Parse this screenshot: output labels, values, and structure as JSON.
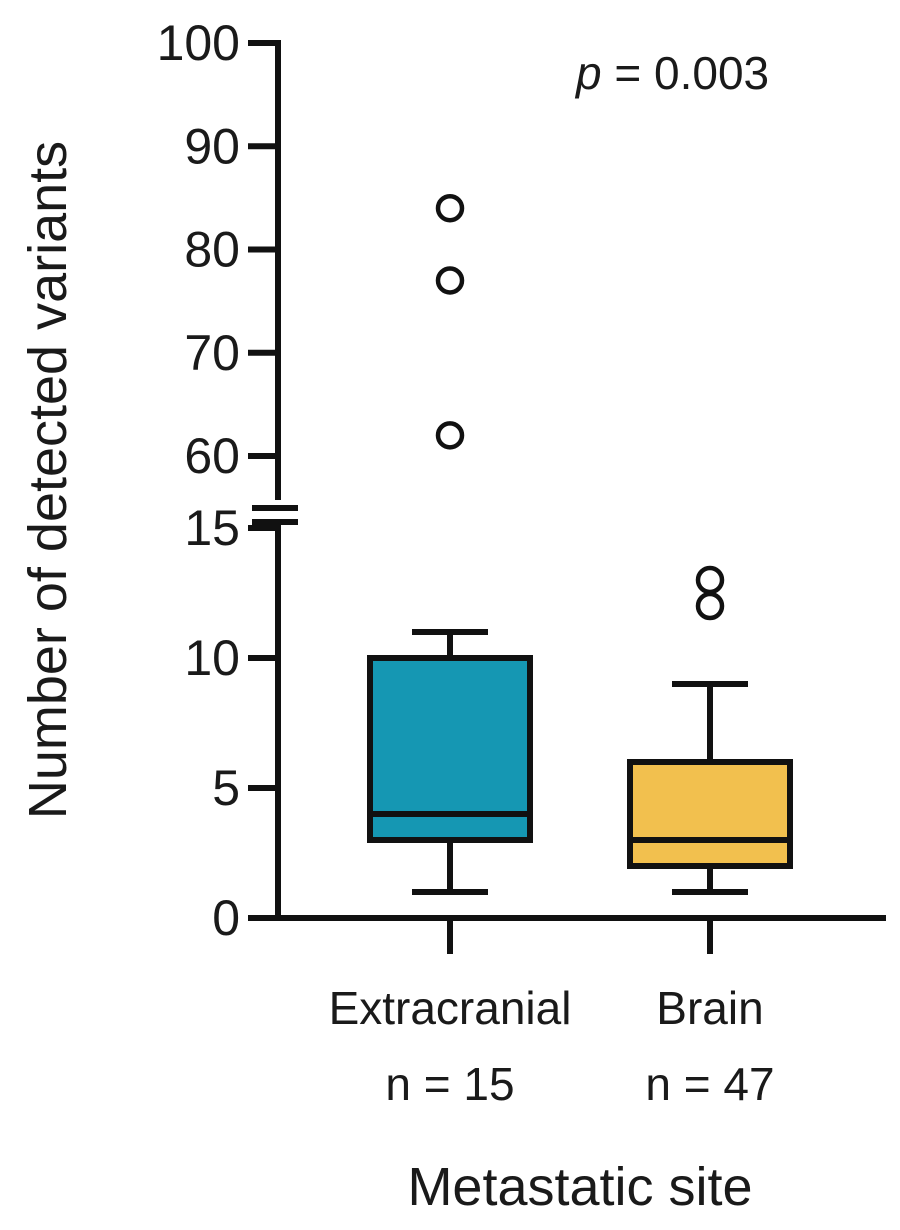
{
  "chart_data": {
    "type": "box",
    "ylabel": "Number of detected variants",
    "xlabel": "Metastatic site",
    "annotation": {
      "p_italic": "p",
      "p_rest": " = 0.003"
    },
    "y_axis_break": {
      "lower_range": [
        0,
        15
      ],
      "upper_range": [
        60,
        100
      ]
    },
    "y_ticks_lower": [
      0,
      5,
      10,
      15
    ],
    "y_ticks_upper": [
      60,
      70,
      80,
      90,
      100
    ],
    "y_tick_labels": {
      "t0": "0",
      "t5": "5",
      "t10": "10",
      "t15": "15",
      "t60": "60",
      "t70": "70",
      "t80": "80",
      "t90": "90",
      "t100": "100"
    },
    "categories": [
      {
        "name": "Extracranial",
        "n_label": "n = 15",
        "color": "#1597b3",
        "whisker_low": 1,
        "q1": 3,
        "median": 4,
        "q3": 10,
        "whisker_high": 11,
        "outliers": [
          62,
          77,
          84
        ]
      },
      {
        "name": "Brain",
        "n_label": "n = 47",
        "color": "#f2c04e",
        "whisker_low": 1,
        "q1": 2,
        "median": 3,
        "q3": 6,
        "whisker_high": 9,
        "outliers": [
          12,
          13
        ]
      }
    ]
  }
}
